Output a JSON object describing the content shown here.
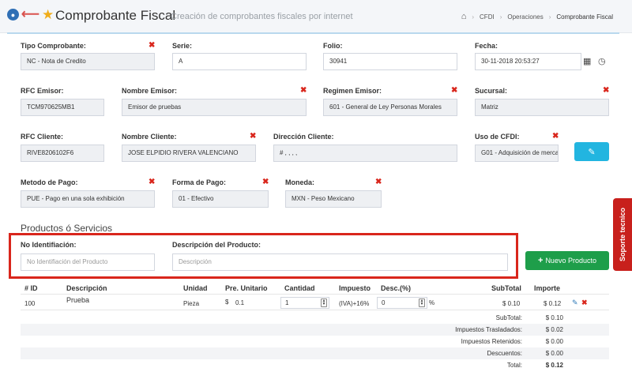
{
  "header": {
    "title": "Comprobante Fiscal",
    "subtitle": "Creación de comprobantes fiscales por internet",
    "breadcrumb": [
      "CFDI",
      "Operaciones",
      "Comprobante Fiscal"
    ],
    "icons": [
      "pin-icon",
      "back-arrow-icon",
      "star-icon",
      "home-icon"
    ]
  },
  "form": {
    "tipo": {
      "label": "Tipo Comprobante:",
      "value": "NC - Nota de Credito"
    },
    "serie": {
      "label": "Serie:",
      "value": "A"
    },
    "folio": {
      "label": "Folio:",
      "value": "30941"
    },
    "fecha": {
      "label": "Fecha:",
      "value": "30-11-2018 20:53:27"
    },
    "rfc_emisor": {
      "label": "RFC Emisor:",
      "value": "TCM970625MB1"
    },
    "nombre_emisor": {
      "label": "Nombre Emisor:",
      "value": "Emisor de pruebas"
    },
    "regimen_emisor": {
      "label": "Regimen Emisor:",
      "value": "601 - General de Ley Personas Morales"
    },
    "sucursal": {
      "label": "Sucursal:",
      "value": "Matriz"
    },
    "rfc_cliente": {
      "label": "RFC Cliente:",
      "value": "RIVE8206102F6"
    },
    "nombre_cliente": {
      "label": "Nombre Cliente:",
      "value": "JOSE ELPIDIO RIVERA VALENCIANO"
    },
    "direccion_cliente": {
      "label": "Dirección Cliente:",
      "value": "# , , , ,"
    },
    "uso_cfdi": {
      "label": "Uso de CFDI:",
      "value": "G01 - Adquisición de merca"
    },
    "metodo_pago": {
      "label": "Metodo de Pago:",
      "value": "PUE - Pago en una sola exhibición"
    },
    "forma_pago": {
      "label": "Forma de Pago:",
      "value": "01 - Efectivo"
    },
    "moneda": {
      "label": "Moneda:",
      "value": "MXN - Peso Mexicano"
    }
  },
  "productos": {
    "title": "Productos ó Servicios",
    "no_ident": {
      "label": "No Identifiación:",
      "placeholder": "No Identifiación del Producto"
    },
    "descripcion": {
      "label": "Descripción del Producto:",
      "placeholder": "Descripción"
    },
    "new_button": "Nuevo Producto"
  },
  "table": {
    "headers": {
      "id": "# ID",
      "descripcion": "Descripción",
      "unidad": "Unidad",
      "precio": "Pre. Unitario",
      "cantidad": "Cantidad",
      "impuesto": "Impuesto",
      "desc": "Desc.(%)",
      "subtotal": "SubTotal",
      "importe": "Importe"
    },
    "row": {
      "id": "100",
      "descripcion": "Prueba",
      "unidad": "Pieza",
      "currency": "$",
      "precio": "0.1",
      "cantidad": "1",
      "impuesto": "(IVA)+16%",
      "desc": "0",
      "percent": "%",
      "subtotal": "$ 0.10",
      "importe": "$ 0.12"
    },
    "totals": [
      {
        "label": "SubTotal:",
        "value": "$ 0.10"
      },
      {
        "label": "Impuestos Trasladados:",
        "value": "$ 0.02"
      },
      {
        "label": "Impuestos Retenidos:",
        "value": "$ 0.00"
      },
      {
        "label": "Descuentos:",
        "value": "$ 0.00"
      },
      {
        "label": "Total:",
        "value": "$ 0.12"
      }
    ]
  },
  "support_tab": "Soporte tecnico",
  "colors": {
    "required": "#d9261c",
    "edit_button": "#22b5e0",
    "new_button": "#1e9e4a",
    "support": "#c8201c"
  }
}
